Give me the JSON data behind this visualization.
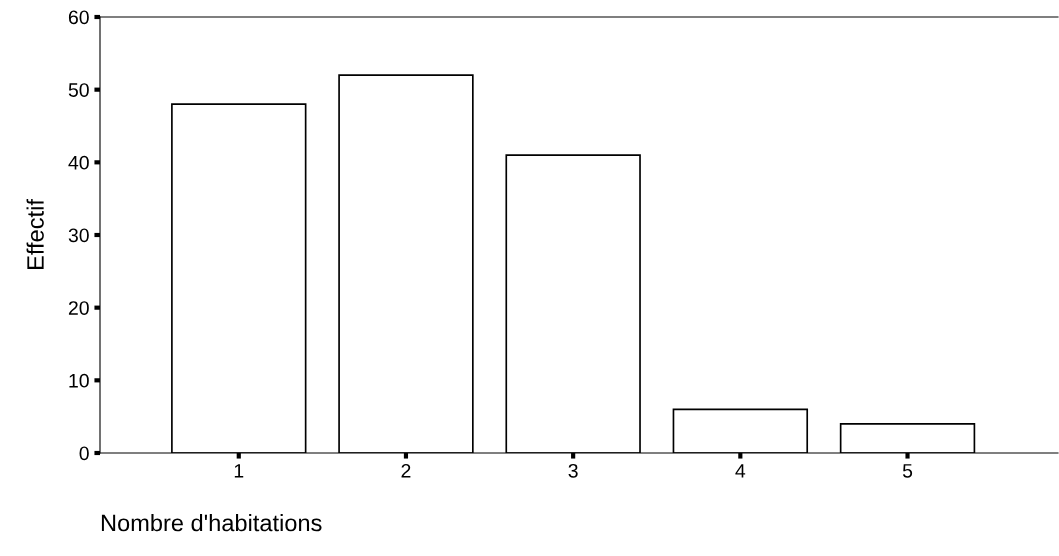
{
  "chart_data": {
    "type": "bar",
    "xlabel": "Nombre d'habitations",
    "ylabel": "Effectif",
    "categories": [
      "1",
      "2",
      "3",
      "4",
      "5"
    ],
    "values": [
      48,
      52,
      41,
      6,
      4
    ],
    "color": "#ffffff",
    "ylim": [
      0,
      60
    ],
    "yticks": [
      0,
      10,
      20,
      30,
      40,
      50,
      60
    ],
    "grid": false
  }
}
